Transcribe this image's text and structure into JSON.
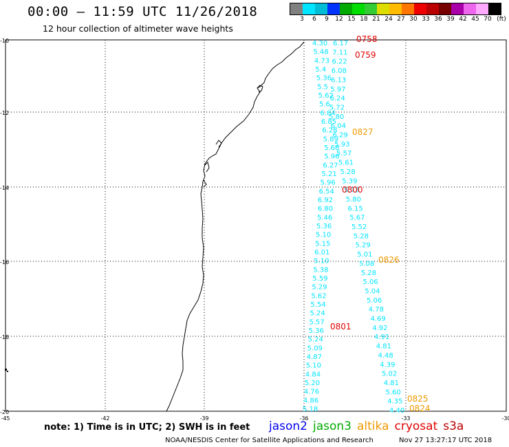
{
  "header": {
    "title": "00:00 – 11:59 UTC 11/26/2018",
    "subtitle": "12 hour collection of altimeter wave heights"
  },
  "color_scale": {
    "colors": [
      "#808080",
      "#00e5ff",
      "#00bcd4",
      "#0033ff",
      "#00aa00",
      "#00dd00",
      "#33cc33",
      "#dddd00",
      "#ffbb00",
      "#ff7700",
      "#ee0000",
      "#bb0000",
      "#770000",
      "#aa00aa",
      "#ee66ee",
      "#ffaaff",
      "#000000"
    ],
    "labels": [
      "3",
      "6",
      "9",
      "12",
      "15",
      "18",
      "21",
      "24",
      "27",
      "30",
      "33",
      "36",
      "39",
      "42",
      "45",
      "70",
      "(ft)"
    ]
  },
  "axes": {
    "lat_labels": [
      "-10",
      "-12",
      "-14",
      "-16",
      "-18",
      "-20"
    ],
    "lon_labels": [
      "-45",
      "-42",
      "-39",
      "-36",
      "-33",
      "-30"
    ]
  },
  "passes": {
    "west_track": {
      "color": "#00e5ff",
      "values": [
        "4.30",
        "5.48",
        "4.73",
        "5.4",
        "5.36",
        "5.5",
        "5.62",
        "5.6",
        "6.84",
        "6.85",
        "6.28",
        "5.89",
        "5.68",
        "5.96",
        "6.27",
        "5.21",
        "5.96",
        "6.54",
        "6.92",
        "6.80",
        "5.46",
        "5.36",
        "5.10",
        "5.15",
        "6.01",
        "5.10",
        "5.38",
        "5.59",
        "5.29",
        "5.62",
        "5.54",
        "5.24",
        "5.57",
        "5.36",
        "5.24",
        "5.09",
        "4.87",
        "5.10",
        "4.84",
        "5.20",
        "4.76",
        "4.86",
        "5.18"
      ]
    },
    "east_track": {
      "color": "#00e5ff",
      "values": [
        "6.17",
        "7.11",
        "6.22",
        "6.08",
        "6.13",
        "5.97",
        "6.24",
        "5.72",
        "5.80",
        "6.04",
        "6.29",
        "5.93",
        "5.57",
        "5.61",
        "5.28",
        "5.39",
        "5.73",
        "5.80",
        "6.15",
        "5.67",
        "5.52",
        "5.28",
        "5.29",
        "5.01",
        "5.08",
        "5.28",
        "5.06",
        "5.04",
        "5.06",
        "4.78",
        "4.69",
        "4.92",
        "4.91",
        "4.81",
        "4.48",
        "4.39",
        "5.02",
        "4.81",
        "5.60",
        "4.35",
        "4.40"
      ]
    },
    "time_labels": [
      {
        "text": "0758",
        "color": "#e00000"
      },
      {
        "text": "0759",
        "color": "#e00000"
      },
      {
        "text": "0827",
        "color": "#ee9900"
      },
      {
        "text": "0800",
        "color": "#e00000"
      },
      {
        "text": "0826",
        "color": "#ee9900"
      },
      {
        "text": "0801",
        "color": "#e00000"
      },
      {
        "text": "0825",
        "color": "#ee9900"
      },
      {
        "text": "0824",
        "color": "#ee9900"
      }
    ]
  },
  "footer": {
    "note": "note:  1) Time is in UTC;  2) SWH is in feet",
    "satellites": [
      {
        "name": "jason2",
        "color": "#0000ee"
      },
      {
        "name": "jason3",
        "color": "#00aa00"
      },
      {
        "name": "altika",
        "color": "#ee9900"
      },
      {
        "name": "cryosat",
        "color": "#e00000"
      },
      {
        "name": "s3a",
        "color": "#bb0000"
      }
    ],
    "credit": "NOAA/NESDIS Center for Satellite Applications and Research",
    "timestamp": "Nov 27 13:27:17 UTC 2018"
  }
}
